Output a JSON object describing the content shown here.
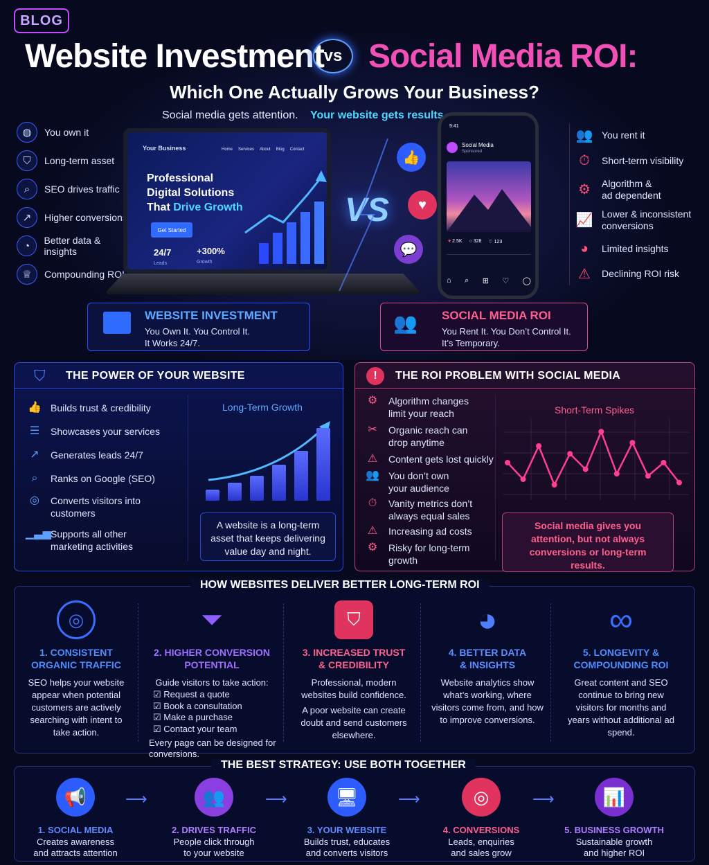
{
  "header": {
    "badge": "BLOG",
    "title_left": "Website Investment",
    "vs": "vs",
    "title_right": "Social Media ROI:",
    "subtitle": "Which One Actually Grows Your Business?",
    "tagline_left": "Social media gets attention.",
    "tagline_right": "Your website gets results."
  },
  "website_points": [
    "You own it",
    "Long-term asset",
    "SEO drives traffic",
    "Higher conversions",
    "Better data & insights",
    "Compounding ROI"
  ],
  "social_points": [
    "You rent it",
    "Short-term visibility",
    "Algorithm &\nad dependent",
    "Lower & inconsistent\nconversions",
    "Limited insights",
    "Declining ROI risk"
  ],
  "laptop": {
    "brand": "Your Business",
    "nav": [
      "Home",
      "Services",
      "About",
      "Blog",
      "Contact"
    ],
    "headline1": "Professional",
    "headline2": "Digital Solutions",
    "headline3a": "That ",
    "headline3b": "Drive Growth",
    "cta": "Get Started",
    "stat1_value": "24/7",
    "stat1_label": "Leads",
    "stat2_value": "+300%",
    "stat2_label": "Growth"
  },
  "phone": {
    "time": "9:41",
    "name": "Social Media",
    "sponsored": "Sponsored",
    "likes": "2.5K",
    "comments": "328",
    "shares": "123"
  },
  "vs_big": "VS",
  "website_card": {
    "title": "WEBSITE INVESTMENT",
    "line1": "You Own It. You Control It.",
    "line2": "It Works 24/7."
  },
  "social_card": {
    "title": "SOCIAL MEDIA ROI",
    "line1": "You Rent It. You Don’t Control It.",
    "line2": "It’s Temporary."
  },
  "power": {
    "title": "THE POWER OF YOUR WEBSITE",
    "items": [
      "Builds trust & credibility",
      "Showcases your services",
      "Generates leads 24/7",
      "Ranks on Google (SEO)",
      "Converts visitors into\ncustomers",
      "Supports all other\nmarketing activities"
    ],
    "chart_title": "Long-Term Growth",
    "note": "A website is a long-term asset that keeps delivering value day and night."
  },
  "roi_problem": {
    "title": "THE ROI PROBLEM WITH SOCIAL MEDIA",
    "items": [
      "Algorithm changes\nlimit your reach",
      "Organic reach can\ndrop anytime",
      "Content gets lost quickly",
      "You don’t own\nyour audience",
      "Vanity metrics don’t\nalways equal sales",
      "Increasing ad costs",
      "Risky for long-term\ngrowth"
    ],
    "chart_title": "Short-Term Spikes",
    "note": "Social media gives you attention, but not always conversions or long-term results."
  },
  "chart_data": [
    {
      "type": "bar",
      "title": "Long-Term Growth",
      "categories": [
        "1",
        "2",
        "3",
        "4",
        "5",
        "6"
      ],
      "values": [
        1,
        1.6,
        2.2,
        3.2,
        4.4,
        6.4
      ]
    },
    {
      "type": "line",
      "title": "Short-Term Spikes",
      "x": [
        1,
        2,
        3,
        4,
        5,
        6,
        7,
        8,
        9,
        10,
        11,
        12
      ],
      "values": [
        3,
        1.5,
        4.5,
        1,
        3.8,
        2.4,
        5.8,
        2,
        4.8,
        1.8,
        3,
        1.2
      ]
    }
  ],
  "how": {
    "title": "HOW WEBSITES DELIVER BETTER LONG-TERM ROI",
    "cols": [
      {
        "head": "1. CONSISTENT\nORGANIC TRAFFIC",
        "body": "SEO helps your website appear when potential customers are actively searching with intent to take action."
      },
      {
        "head": "2. HIGHER CONVERSION\nPOTENTIAL",
        "intro": "Guide visitors to take action:",
        "checks": [
          "Request a quote",
          "Book a consultation",
          "Make a purchase",
          "Contact your team"
        ],
        "footer": "Every page can be designed for conversions."
      },
      {
        "head": "3. INCREASED TRUST\n& CREDIBILITY",
        "body": "Professional, modern websites build confidence.",
        "body2": "A poor website can create doubt and send customers elsewhere."
      },
      {
        "head": "4. BETTER DATA\n& INSIGHTS",
        "body": "Website analytics show what’s working, where visitors come from, and how to improve conversions."
      },
      {
        "head": "5. LONGEVITY &\nCOMPOUNDING ROI",
        "body": "Great content and SEO continue to bring new visitors for months and years without additional ad spend."
      }
    ]
  },
  "strategy": {
    "title": "THE BEST STRATEGY: USE BOTH TOGETHER",
    "steps": [
      {
        "head": "1. SOCIAL MEDIA",
        "body": "Creates awareness\nand attracts attention"
      },
      {
        "head": "2. DRIVES TRAFFIC",
        "body": "People click through\nto your website"
      },
      {
        "head": "3. YOUR WEBSITE",
        "body": "Builds trust, educates\nand converts visitors"
      },
      {
        "head": "4. CONVERSIONS",
        "body": "Leads, enquiries\nand sales grow"
      },
      {
        "head": "5. BUSINESS GROWTH",
        "body": "Sustainable growth\nand higher ROI"
      }
    ]
  },
  "colors": {
    "blue": "#3b6dff",
    "pink": "#f24fb7",
    "cyan": "#4fd8ff",
    "bg": "#070a1f"
  }
}
